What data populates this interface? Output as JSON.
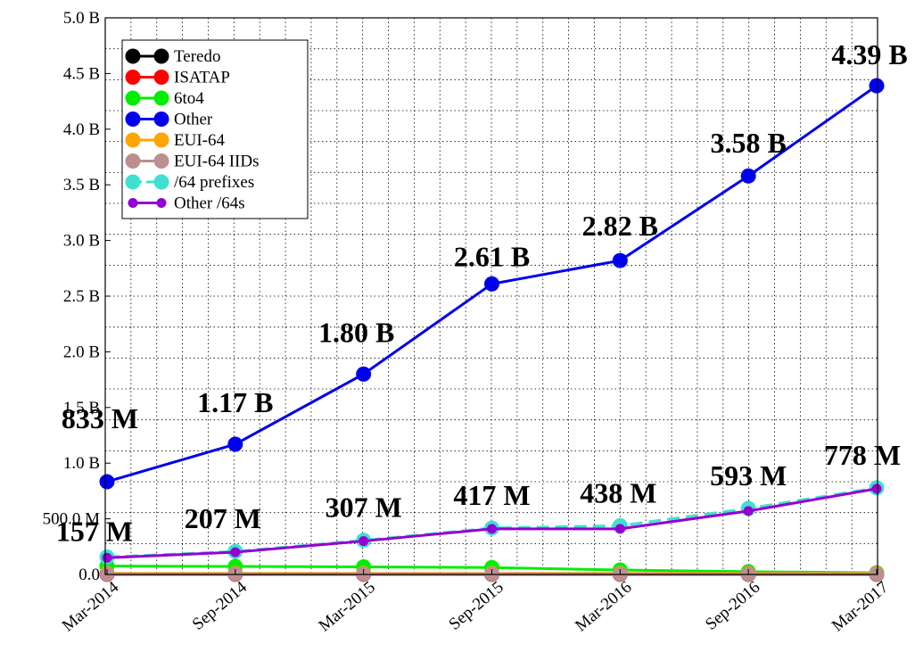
{
  "chart_data": {
    "type": "line",
    "x": [
      "Mar-2014",
      "Sep-2014",
      "Mar-2015",
      "Sep-2015",
      "Mar-2016",
      "Sep-2016",
      "Mar-2017"
    ],
    "ylim": [
      0,
      5000000000
    ],
    "y_ticks": [
      {
        "value": 0,
        "label": "0.0"
      },
      {
        "value": 500000000,
        "label": "500.0 M"
      },
      {
        "value": 1000000000,
        "label": "1.0 B"
      },
      {
        "value": 1500000000,
        "label": "1.5 B"
      },
      {
        "value": 2000000000,
        "label": "2.0 B"
      },
      {
        "value": 2500000000,
        "label": "2.5 B"
      },
      {
        "value": 3000000000,
        "label": "3.0 B"
      },
      {
        "value": 3500000000,
        "label": "3.5 B"
      },
      {
        "value": 4000000000,
        "label": "4.0 B"
      },
      {
        "value": 4500000000,
        "label": "4.5 B"
      },
      {
        "value": 5000000000,
        "label": "5.0 B"
      }
    ],
    "grid": true,
    "legend_position": "top-left",
    "series": [
      {
        "name": "Teredo",
        "color": "#000000",
        "dashed": false,
        "marker": "large",
        "values": [
          2000000,
          2000000,
          2000000,
          2000000,
          2000000,
          2000000,
          2000000
        ]
      },
      {
        "name": "ISATAP",
        "color": "#ff0000",
        "dashed": false,
        "marker": "large",
        "values": [
          3000000,
          3000000,
          3000000,
          3000000,
          3000000,
          3000000,
          3000000
        ]
      },
      {
        "name": "6to4",
        "color": "#00ee00",
        "dashed": false,
        "marker": "large",
        "values": [
          75000000,
          72000000,
          68000000,
          62000000,
          40000000,
          25000000,
          15000000
        ]
      },
      {
        "name": "Other",
        "color": "#0000ee",
        "dashed": false,
        "marker": "large",
        "values": [
          833000000,
          1170000000,
          1800000000,
          2610000000,
          2820000000,
          3580000000,
          4390000000
        ]
      },
      {
        "name": "EUI-64",
        "color": "#ffa500",
        "dashed": false,
        "marker": "large",
        "values": [
          10000000,
          10000000,
          10000000,
          10000000,
          10000000,
          10000000,
          10000000
        ]
      },
      {
        "name": "EUI-64 IIDs",
        "color": "#bc8f8f",
        "dashed": false,
        "marker": "large",
        "values": [
          5000000,
          5000000,
          5000000,
          5000000,
          5000000,
          5000000,
          5000000
        ]
      },
      {
        "name": "/64 prefixes",
        "color": "#40e0d0",
        "dashed": true,
        "marker": "large",
        "values": [
          157000000,
          207000000,
          307000000,
          417000000,
          438000000,
          593000000,
          778000000
        ]
      },
      {
        "name": "Other /64s",
        "color": "#9400d3",
        "dashed": false,
        "marker": "small",
        "values": [
          150000000,
          200000000,
          300000000,
          410000000,
          410000000,
          570000000,
          770000000
        ]
      }
    ],
    "annotations": [
      {
        "series": "Other",
        "index": 0,
        "text": "833 M"
      },
      {
        "series": "Other",
        "index": 1,
        "text": "1.17 B"
      },
      {
        "series": "Other",
        "index": 2,
        "text": "1.80 B"
      },
      {
        "series": "Other",
        "index": 3,
        "text": "2.61 B"
      },
      {
        "series": "Other",
        "index": 4,
        "text": "2.82 B"
      },
      {
        "series": "Other",
        "index": 5,
        "text": "3.58 B"
      },
      {
        "series": "Other",
        "index": 6,
        "text": "4.39 B"
      },
      {
        "series": "/64 prefixes",
        "index": 0,
        "text": "157 M"
      },
      {
        "series": "/64 prefixes",
        "index": 1,
        "text": "207 M"
      },
      {
        "series": "/64 prefixes",
        "index": 2,
        "text": "307 M"
      },
      {
        "series": "/64 prefixes",
        "index": 3,
        "text": "417 M"
      },
      {
        "series": "/64 prefixes",
        "index": 4,
        "text": "438 M"
      },
      {
        "series": "/64 prefixes",
        "index": 5,
        "text": "593 M"
      },
      {
        "series": "/64 prefixes",
        "index": 6,
        "text": "778 M"
      }
    ]
  }
}
